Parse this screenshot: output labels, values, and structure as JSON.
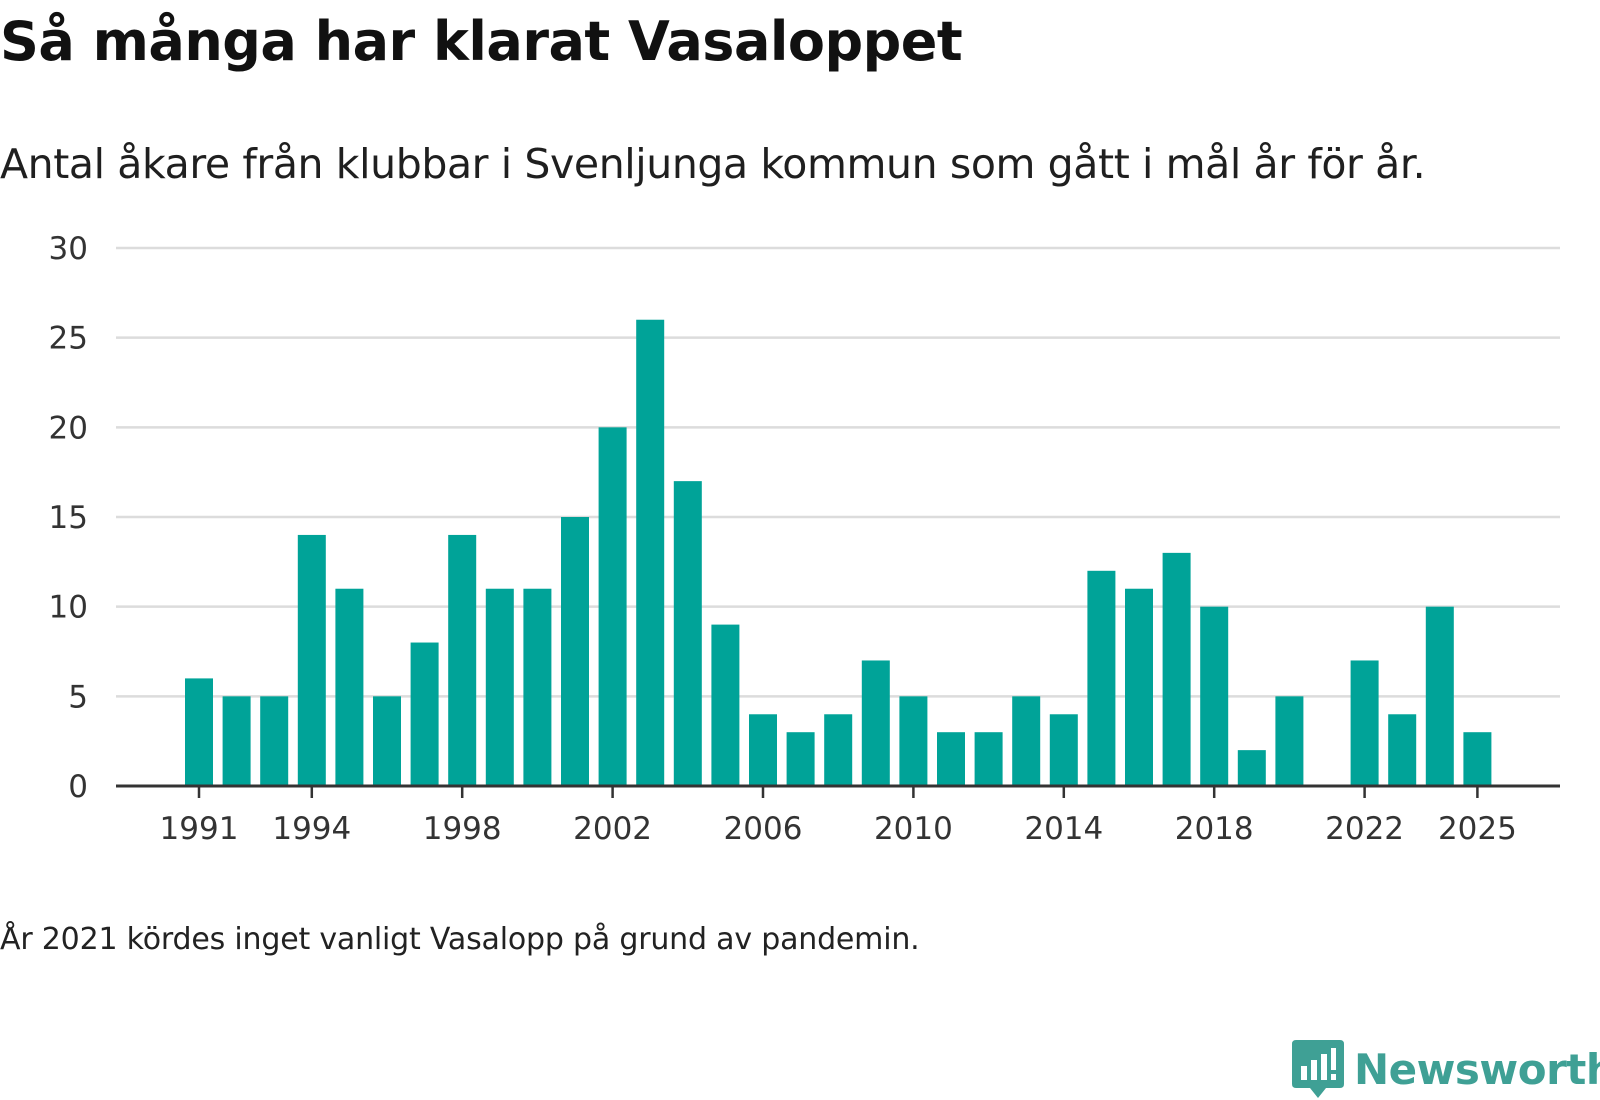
{
  "chart_data": {
    "type": "bar",
    "title": "Så många har klarat Vasaloppet",
    "subtitle": "Antal åkare från klubbar i Svenljunga kommun som gått i mål år för år.",
    "categories": [
      1991,
      1992,
      1993,
      1994,
      1995,
      1996,
      1997,
      1998,
      1999,
      2000,
      2001,
      2002,
      2003,
      2004,
      2005,
      2006,
      2007,
      2008,
      2009,
      2010,
      2011,
      2012,
      2013,
      2014,
      2015,
      2016,
      2017,
      2018,
      2019,
      2020,
      2021,
      2022,
      2023,
      2024,
      2025
    ],
    "values": [
      6,
      5,
      5,
      14,
      11,
      5,
      8,
      14,
      11,
      11,
      15,
      20,
      26,
      17,
      9,
      4,
      3,
      4,
      7,
      5,
      3,
      3,
      5,
      4,
      12,
      11,
      13,
      10,
      2,
      5,
      null,
      7,
      4,
      10,
      3
    ],
    "x_tick_labels": [
      "1991",
      "1994",
      "1998",
      "2002",
      "2006",
      "2010",
      "2014",
      "2018",
      "2022",
      "2025"
    ],
    "y_tick_labels": [
      "0",
      "5",
      "10",
      "15",
      "20",
      "25",
      "30"
    ],
    "ylim": [
      0,
      30
    ],
    "xlabel": "",
    "ylabel": "",
    "grid": true,
    "bar_color": "#00a398",
    "footnote": "År 2021 kördes inget vanligt Vasalopp på grund av pandemin."
  },
  "brand": {
    "name": "Newsworthy",
    "icon": "newsworthy-logo-icon",
    "color": "#3fa095"
  }
}
